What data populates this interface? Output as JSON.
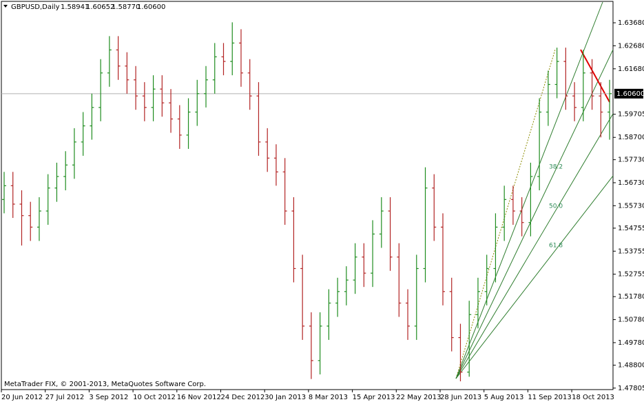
{
  "chart_data": {
    "type": "ohlc",
    "title": "GBPUSD,Daily",
    "header_values": [
      "1.58941",
      "1.60652",
      "1.58770",
      "1.60600"
    ],
    "copyright": "MetaTrader FIX, © 2001-2013, MetaQuotes Software Corp.",
    "up_color": "#1e8c1e",
    "down_color": "#b22222",
    "categories": [
      "20 Jun 2012",
      null,
      null,
      null,
      null,
      "27 Jul 2012",
      null,
      null,
      null,
      null,
      "3 Sep 2012",
      null,
      null,
      null,
      null,
      "10 Oct 2012",
      null,
      null,
      null,
      null,
      "16 Nov 2012",
      null,
      null,
      null,
      null,
      "24 Dec 2012",
      null,
      null,
      null,
      null,
      "30 Jan 2013",
      null,
      null,
      null,
      null,
      "8 Mar 2013",
      null,
      null,
      null,
      null,
      "15 Apr 2013",
      null,
      null,
      null,
      null,
      "22 May 2013",
      null,
      null,
      null,
      null,
      "28 Jun 2013",
      null,
      null,
      null,
      null,
      "5 Aug 2013",
      null,
      null,
      null,
      null,
      "11 Sep 2013",
      null,
      null,
      null,
      null,
      "18 Oct 2013",
      null,
      null,
      null,
      null
    ],
    "open": [
      1.56,
      1.566,
      1.558,
      1.553,
      1.548,
      1.555,
      1.565,
      1.57,
      1.575,
      1.585,
      1.592,
      1.6,
      1.615,
      1.625,
      1.618,
      1.612,
      1.605,
      1.6,
      1.608,
      1.602,
      1.595,
      1.588,
      1.598,
      1.606,
      1.612,
      1.622,
      1.62,
      1.628,
      1.615,
      1.605,
      1.585,
      1.578,
      1.572,
      1.555,
      1.53,
      1.505,
      1.49,
      1.505,
      1.515,
      1.52,
      1.525,
      1.535,
      1.528,
      1.545,
      1.555,
      1.535,
      1.515,
      1.505,
      1.53,
      1.565,
      1.548,
      1.52,
      1.5,
      1.485,
      1.51,
      1.52,
      1.53,
      1.548,
      1.56,
      1.555,
      1.55,
      1.57,
      1.598,
      1.61,
      1.62,
      1.605,
      1.6,
      1.615,
      1.605,
      1.598
    ],
    "high": [
      1.572,
      1.572,
      1.564,
      1.559,
      1.561,
      1.571,
      1.576,
      1.581,
      1.591,
      1.598,
      1.606,
      1.621,
      1.631,
      1.631,
      1.624,
      1.618,
      1.611,
      1.614,
      1.614,
      1.608,
      1.601,
      1.604,
      1.612,
      1.618,
      1.628,
      1.628,
      1.637,
      1.634,
      1.621,
      1.611,
      1.591,
      1.584,
      1.578,
      1.561,
      1.536,
      1.511,
      1.511,
      1.521,
      1.526,
      1.531,
      1.541,
      1.541,
      1.551,
      1.561,
      1.561,
      1.541,
      1.521,
      1.536,
      1.574,
      1.571,
      1.554,
      1.526,
      1.506,
      1.516,
      1.526,
      1.536,
      1.554,
      1.566,
      1.566,
      1.561,
      1.576,
      1.604,
      1.616,
      1.626,
      1.626,
      1.611,
      1.625,
      1.621,
      1.611,
      1.612
    ],
    "low": [
      1.554,
      1.552,
      1.54,
      1.542,
      1.542,
      1.549,
      1.559,
      1.564,
      1.569,
      1.579,
      1.586,
      1.594,
      1.609,
      1.612,
      1.606,
      1.599,
      1.594,
      1.594,
      1.596,
      1.589,
      1.582,
      1.582,
      1.592,
      1.6,
      1.606,
      1.614,
      1.614,
      1.609,
      1.599,
      1.579,
      1.572,
      1.566,
      1.549,
      1.524,
      1.499,
      1.482,
      1.484,
      1.499,
      1.509,
      1.514,
      1.519,
      1.522,
      1.522,
      1.539,
      1.529,
      1.509,
      1.499,
      1.499,
      1.524,
      1.542,
      1.514,
      1.494,
      1.481,
      1.483,
      1.504,
      1.514,
      1.524,
      1.542,
      1.549,
      1.544,
      1.544,
      1.564,
      1.592,
      1.604,
      1.599,
      1.594,
      1.594,
      1.599,
      1.587,
      1.586
    ],
    "close": [
      1.566,
      1.558,
      1.553,
      1.548,
      1.555,
      1.565,
      1.57,
      1.575,
      1.585,
      1.592,
      1.6,
      1.615,
      1.625,
      1.618,
      1.612,
      1.605,
      1.6,
      1.608,
      1.602,
      1.595,
      1.588,
      1.598,
      1.606,
      1.612,
      1.622,
      1.62,
      1.628,
      1.615,
      1.605,
      1.585,
      1.578,
      1.572,
      1.555,
      1.53,
      1.505,
      1.49,
      1.505,
      1.515,
      1.52,
      1.525,
      1.535,
      1.528,
      1.545,
      1.555,
      1.535,
      1.515,
      1.505,
      1.53,
      1.565,
      1.548,
      1.52,
      1.5,
      1.485,
      1.51,
      1.52,
      1.53,
      1.548,
      1.56,
      1.555,
      1.55,
      1.57,
      1.598,
      1.61,
      1.62,
      1.605,
      1.6,
      1.615,
      1.605,
      1.598,
      1.606
    ],
    "ylim": [
      1.4774,
      1.6467
    ],
    "yticks": [
      {
        "value": 1.6368,
        "label": "1.63680"
      },
      {
        "value": 1.6268,
        "label": "1.62680"
      },
      {
        "value": 1.6168,
        "label": "1.61680"
      },
      {
        "value": 1.59705,
        "label": "1.59705"
      },
      {
        "value": 1.587,
        "label": "1.58700"
      },
      {
        "value": 1.5773,
        "label": "1.57730"
      },
      {
        "value": 1.5673,
        "label": "1.56730"
      },
      {
        "value": 1.5573,
        "label": "1.55730"
      },
      {
        "value": 1.54755,
        "label": "1.54755"
      },
      {
        "value": 1.53755,
        "label": "1.53755"
      },
      {
        "value": 1.52755,
        "label": "1.52755"
      },
      {
        "value": 1.5178,
        "label": "1.51780"
      },
      {
        "value": 1.5078,
        "label": "1.50780"
      },
      {
        "value": 1.4978,
        "label": "1.49780"
      },
      {
        "value": 1.488,
        "label": "1.48800"
      },
      {
        "value": 1.47805,
        "label": "1.47805"
      }
    ],
    "current_price": {
      "value": 1.606,
      "label": "1.60600"
    },
    "fib_fan": {
      "levels": [
        {
          "value": 38.2,
          "label": "38.2"
        },
        {
          "value": 50,
          "label": "50.0"
        },
        {
          "value": 61.8,
          "label": "61.8"
        }
      ],
      "color": "#2e8b57"
    }
  }
}
